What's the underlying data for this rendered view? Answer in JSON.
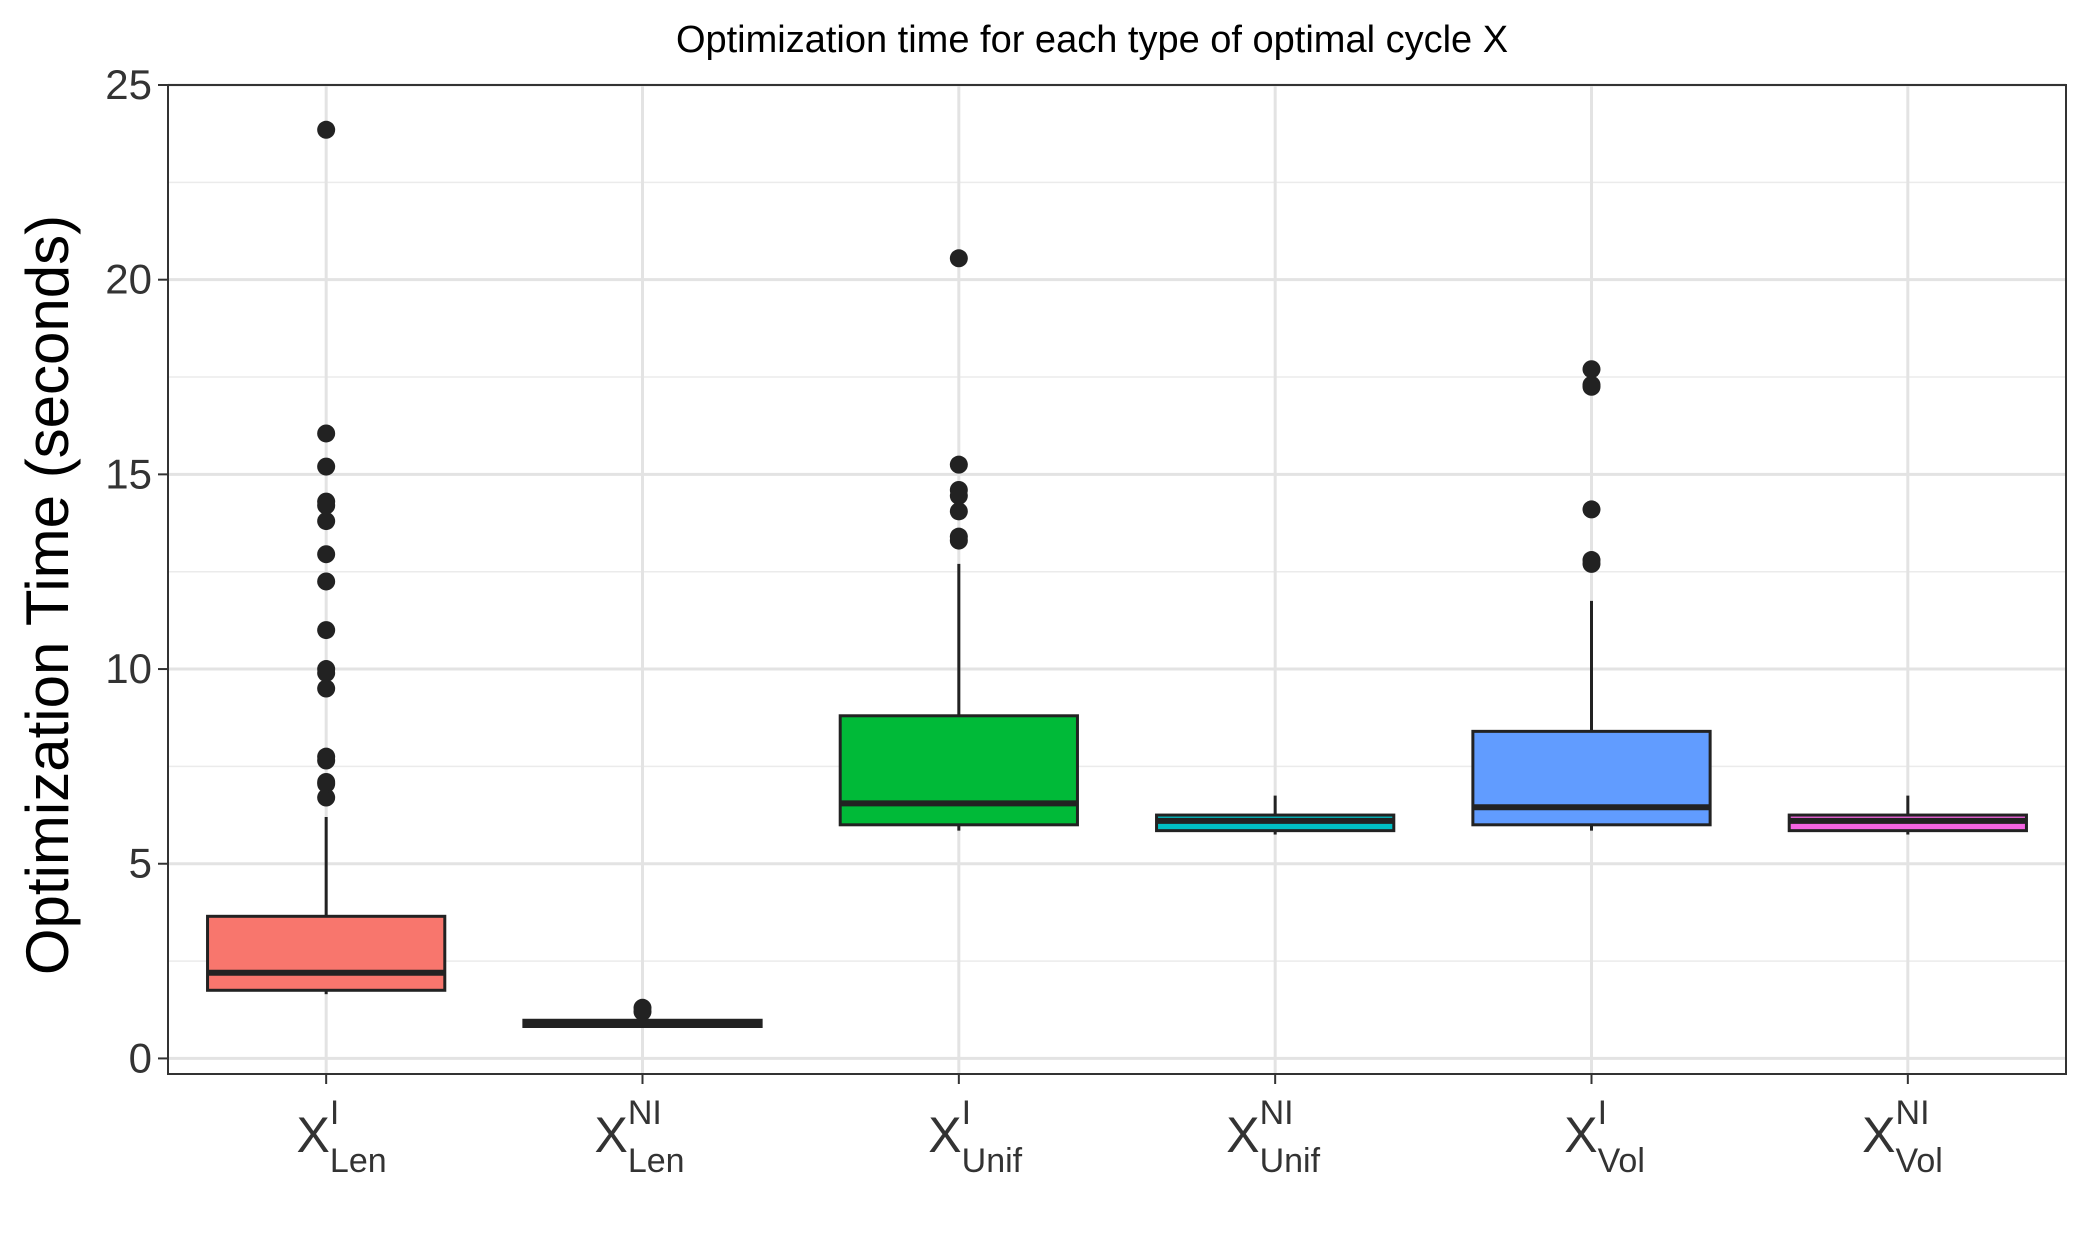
{
  "chart_data": {
    "type": "box",
    "title": "Optimization time for each type of optimal cycle X",
    "xlabel": "",
    "ylabel": "Optimization Time (seconds)",
    "ylim": [
      -0.4,
      25
    ],
    "yticks": [
      0,
      5,
      10,
      15,
      20,
      25
    ],
    "grid": true,
    "legend": "none",
    "categories": [
      {
        "base": "X",
        "sup": "I",
        "sub": "Len"
      },
      {
        "base": "X",
        "sup": "NI",
        "sub": "Len"
      },
      {
        "base": "X",
        "sup": "I",
        "sub": "Unif"
      },
      {
        "base": "X",
        "sup": "NI",
        "sub": "Unif"
      },
      {
        "base": "X",
        "sup": "I",
        "sub": "Vol"
      },
      {
        "base": "X",
        "sup": "NI",
        "sub": "Vol"
      }
    ],
    "boxes": [
      {
        "color": "#F8766D",
        "min": 1.65,
        "q1": 1.75,
        "median": 2.2,
        "q3": 3.65,
        "max": 6.2,
        "outliers": [
          6.7,
          7.05,
          7.1,
          7.65,
          7.75,
          9.5,
          9.9,
          10.0,
          11.0,
          12.25,
          12.95,
          13.8,
          14.2,
          14.3,
          15.2,
          16.05,
          23.85
        ]
      },
      {
        "color": "#B79F00",
        "min": 0.8,
        "q1": 0.82,
        "median": 0.9,
        "q3": 0.98,
        "max": 1.1,
        "outliers": [
          1.2,
          1.3
        ]
      },
      {
        "color": "#00BA38",
        "min": 5.85,
        "q1": 6.0,
        "median": 6.55,
        "q3": 8.8,
        "max": 12.7,
        "outliers": [
          13.3,
          13.4,
          14.05,
          14.45,
          14.6,
          15.25,
          20.55
        ]
      },
      {
        "color": "#00BFC4",
        "min": 5.75,
        "q1": 5.85,
        "median": 6.1,
        "q3": 6.25,
        "max": 6.75,
        "outliers": []
      },
      {
        "color": "#619CFF",
        "min": 5.85,
        "q1": 6.0,
        "median": 6.45,
        "q3": 8.4,
        "max": 11.75,
        "outliers": [
          12.7,
          12.8,
          14.1,
          17.25,
          17.3,
          17.7
        ]
      },
      {
        "color": "#F564E3",
        "min": 5.75,
        "q1": 5.85,
        "median": 6.1,
        "q3": 6.25,
        "max": 6.75,
        "outliers": []
      }
    ]
  }
}
